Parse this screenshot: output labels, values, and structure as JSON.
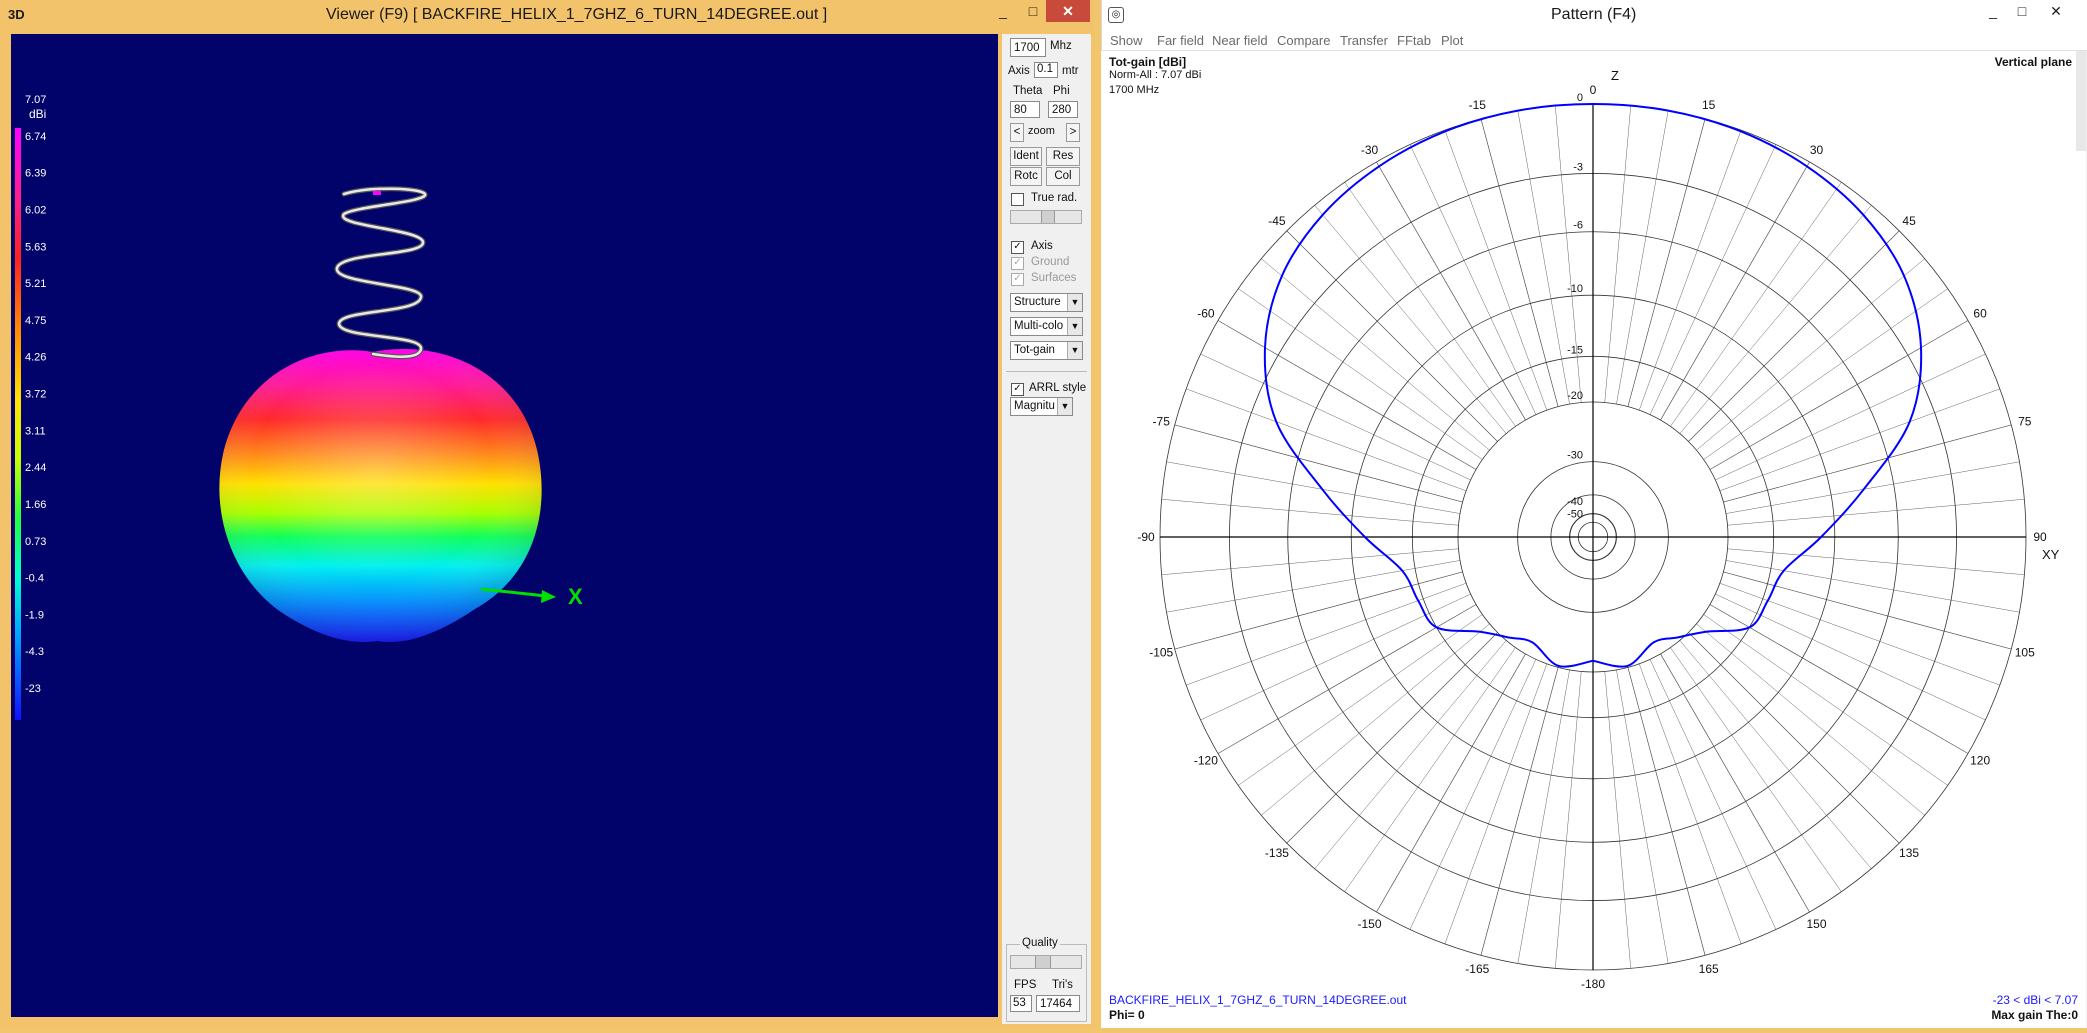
{
  "viewer": {
    "corner_label": "3D",
    "title": "Viewer (F9)     [  BACKFIRE_HELIX_1_7GHZ_6_TURN_14DEGREE.out ]",
    "win_minimize": "_",
    "win_maximize": "□",
    "win_close": "✕",
    "legend_unit": "dBi",
    "legend_ticks": [
      "7.07",
      "6.74",
      "6.39",
      "6.02",
      "5.63",
      "5.21",
      "4.75",
      "4.26",
      "3.72",
      "3.11",
      "2.44",
      "1.66",
      "0.73",
      "-0.4",
      "-1.9",
      "-4.3",
      "-23"
    ],
    "axis_x_label": "X"
  },
  "controls": {
    "freq_value": "1700",
    "freq_unit": "Mhz",
    "axis_label": "Axis",
    "axis_value": "0.1",
    "axis_unit": "mtr",
    "theta_label": "Theta",
    "phi_label": "Phi",
    "theta_value": "80",
    "phi_value": "280",
    "zoom_left": "<",
    "zoom_label": "zoom",
    "zoom_right": ">",
    "ident_label": "Ident",
    "res_label": "Res",
    "rotc_label": "Rotc",
    "col_label": "Col",
    "true_rad_label": "True rad.",
    "axis_check_label": "Axis",
    "ground_check_label": "Ground",
    "surfaces_check_label": "Surfaces",
    "structure_value": "Structure",
    "multicolor_value": "Multi-colo",
    "totgain_value": "Tot-gain",
    "arrl_label": "ARRL style",
    "magnitude_value": "Magnitu",
    "quality_label": "Quality",
    "fps_label": "FPS",
    "tris_label": "Tri's",
    "fps_value": "53",
    "tris_value": "17464",
    "checked_mark": "✓"
  },
  "pattern": {
    "title": "Pattern   (F4)",
    "win_minimize": "_",
    "win_maximize": "□",
    "win_close": "✕",
    "menu": [
      "Show",
      "Far field",
      "Near field",
      "Compare",
      "Transfer",
      "FFtab",
      "Plot"
    ],
    "heading": "Tot-gain [dBi]",
    "norm_text": "Norm-All : 7.07 dBi",
    "freq_text": "1700 MHz",
    "plane_text": "Vertical plane",
    "z_axis_label": "Z",
    "xy_axis_label": "XY",
    "file_text": "BACKFIRE_HELIX_1_7GHZ_6_TURN_14DEGREE.out",
    "phi_text": "Phi= 0",
    "range_text": "-23 < dBi < 7.07",
    "max_gain_text": "Max gain The:0"
  },
  "chart_data": {
    "type": "polar",
    "angle_ticks": [
      {
        "deg": 0,
        "label": "0"
      },
      {
        "deg": 15,
        "label": "15"
      },
      {
        "deg": 30,
        "label": "30"
      },
      {
        "deg": 45,
        "label": "45"
      },
      {
        "deg": 60,
        "label": "60"
      },
      {
        "deg": 75,
        "label": "75"
      },
      {
        "deg": 90,
        "label": "90"
      },
      {
        "deg": 105,
        "label": "105"
      },
      {
        "deg": 120,
        "label": "120"
      },
      {
        "deg": 135,
        "label": "135"
      },
      {
        "deg": 150,
        "label": "150"
      },
      {
        "deg": 165,
        "label": "165"
      },
      {
        "deg": 180,
        "label": "-180"
      },
      {
        "deg": -165,
        "label": "-165"
      },
      {
        "deg": -150,
        "label": "-150"
      },
      {
        "deg": -135,
        "label": "-135"
      },
      {
        "deg": -120,
        "label": "-120"
      },
      {
        "deg": -105,
        "label": "-105"
      },
      {
        "deg": -90,
        "label": "-90"
      },
      {
        "deg": -75,
        "label": "-75"
      },
      {
        "deg": -60,
        "label": "-60"
      },
      {
        "deg": -45,
        "label": "-45"
      },
      {
        "deg": -30,
        "label": "-30"
      },
      {
        "deg": -15,
        "label": "-15"
      }
    ],
    "radial_ticks": [
      {
        "db": 0,
        "label": "0"
      },
      {
        "db": -3,
        "label": "-3"
      },
      {
        "db": -6,
        "label": "-6"
      },
      {
        "db": -10,
        "label": "-10"
      },
      {
        "db": -15,
        "label": "-15"
      },
      {
        "db": -20,
        "label": "-20"
      },
      {
        "db": -30,
        "label": "-30"
      },
      {
        "db": -40,
        "label": "-40"
      },
      {
        "db": -50,
        "label": "-50"
      }
    ],
    "scale": "ARRL",
    "series": [
      {
        "color": "#0000ff",
        "theta_deg": [
          -180,
          -165,
          -150,
          -140,
          -130,
          -120,
          -110,
          -100,
          -90,
          -80,
          -70,
          -60,
          -50,
          -40,
          -30,
          -20,
          -10,
          0,
          10,
          20,
          30,
          40,
          50,
          60,
          70,
          80,
          90,
          100,
          110,
          120,
          130,
          140,
          150,
          165,
          180
        ],
        "gain_db": [
          -21.5,
          -20.2,
          -21.8,
          -20.5,
          -18.5,
          -15,
          -14.5,
          -13.8,
          -11,
          -7.8,
          -4.3,
          -2.3,
          -1.1,
          -0.5,
          -0.2,
          -0.05,
          0,
          0,
          0,
          -0.05,
          -0.2,
          -0.5,
          -1.1,
          -2.3,
          -4.3,
          -7.8,
          -11,
          -13.8,
          -14.5,
          -15,
          -18.5,
          -20.5,
          -21.8,
          -20.2,
          -21.5
        ]
      }
    ]
  }
}
